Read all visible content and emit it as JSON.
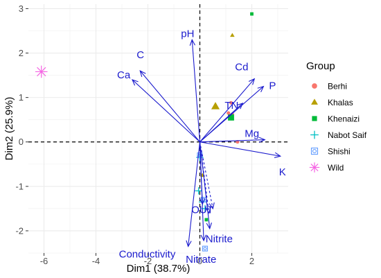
{
  "chart_data": {
    "type": "scatter",
    "title": "",
    "xlabel": "Dim1 (38.7%)",
    "ylabel": "Dim2 (25.9%)",
    "xlim": [
      -6.6,
      3.4
    ],
    "ylim": [
      -2.5,
      3.1
    ],
    "x_ticks": [
      -6,
      -4,
      -2,
      0,
      2
    ],
    "y_ticks": [
      -2,
      -1,
      0,
      1,
      2,
      3
    ],
    "grid": true,
    "reference_lines": {
      "x": 0,
      "y": 0,
      "style": "dashed"
    },
    "legend": {
      "title": "Group",
      "position": "right"
    },
    "series": [
      {
        "name": "Berhi",
        "marker": "circle",
        "color": "#F8766D",
        "points": [
          [
            1.1,
            0.65
          ],
          [
            1.25,
            0.62
          ],
          [
            1.45,
            0.0
          ],
          [
            1.2,
            0.88
          ]
        ]
      },
      {
        "name": "Khalas",
        "marker": "triangle",
        "color": "#B79F00",
        "points": [
          [
            1.25,
            2.4
          ],
          [
            0.6,
            0.8
          ],
          [
            0.1,
            -0.75
          ]
        ]
      },
      {
        "name": "Khenaizi",
        "marker": "square",
        "color": "#00BA38",
        "points": [
          [
            2.0,
            2.88
          ],
          [
            1.2,
            0.55
          ],
          [
            0.25,
            -1.75
          ]
        ]
      },
      {
        "name": "Nabot Saif",
        "marker": "plus",
        "color": "#00BFC4",
        "points": [
          [
            -0.05,
            -1.1
          ],
          [
            0.1,
            -1.35
          ],
          [
            0.2,
            -1.5
          ],
          [
            0.0,
            -0.35
          ]
        ]
      },
      {
        "name": "Shishi",
        "marker": "boxed-circle",
        "color": "#619CFF",
        "points": [
          [
            0.0,
            -0.3
          ],
          [
            0.2,
            -2.4
          ],
          [
            0.15,
            -1.3
          ]
        ]
      },
      {
        "name": "Wild",
        "marker": "asterisk",
        "color": "#F564E3",
        "points": [
          [
            -6.1,
            1.58
          ]
        ]
      }
    ],
    "vectors": [
      {
        "label": "pH",
        "x": -0.3,
        "y": 2.3,
        "style": "solid"
      },
      {
        "label": "C",
        "x": -2.3,
        "y": 1.6,
        "style": "solid"
      },
      {
        "label": "Ca",
        "x": -2.6,
        "y": 1.4,
        "style": "solid"
      },
      {
        "label": "Cd",
        "x": 2.1,
        "y": 1.42,
        "style": "solid"
      },
      {
        "label": "P",
        "x": 2.45,
        "y": 1.25,
        "style": "solid"
      },
      {
        "label": "TN",
        "x": 1.65,
        "y": 0.87,
        "style": "solid"
      },
      {
        "label": "Mg",
        "x": 2.5,
        "y": 0.05,
        "style": "solid"
      },
      {
        "label": "K",
        "x": 3.1,
        "y": -0.32,
        "style": "solid"
      },
      {
        "label": "OUT",
        "x": 0.1,
        "y": -1.4,
        "style": "solid"
      },
      {
        "label": "Nitrite",
        "x": 0.38,
        "y": -1.95,
        "style": "solid"
      },
      {
        "label": "Nitrate",
        "x": 0.15,
        "y": -2.22,
        "style": "solid"
      },
      {
        "label": "Conductivity",
        "x": -0.45,
        "y": -2.35,
        "style": "solid"
      },
      {
        "label": "",
        "x": 0.5,
        "y": -1.5,
        "style": "dashed"
      },
      {
        "label": "",
        "x": 0.35,
        "y": -1.6,
        "style": "dashed"
      }
    ]
  }
}
